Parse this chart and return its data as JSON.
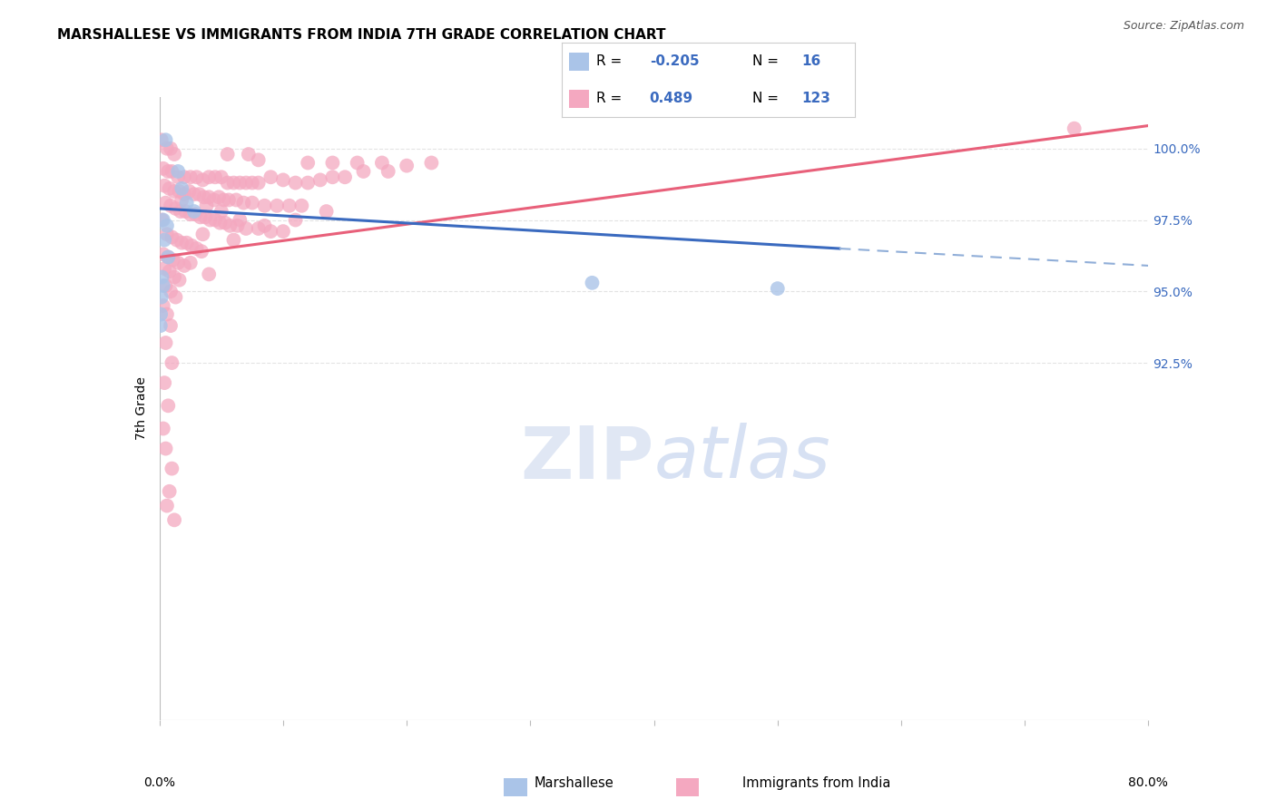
{
  "title": "MARSHALLESE VS IMMIGRANTS FROM INDIA 7TH GRADE CORRELATION CHART",
  "source": "Source: ZipAtlas.com",
  "ylabel": "7th Grade",
  "xlim": [
    0.0,
    80.0
  ],
  "ylim": [
    80.0,
    101.8
  ],
  "marshallese_R": -0.205,
  "marshallese_N": 16,
  "india_R": 0.489,
  "india_N": 123,
  "marshallese_color": "#aac4e8",
  "india_color": "#f4a8c0",
  "trendline_marshallese_solid_color": "#3a6abf",
  "trendline_marshallese_dash_color": "#90aed8",
  "trendline_india_color": "#e8607a",
  "background_color": "#ffffff",
  "grid_color": "#d8d8d8",
  "y_tick_pos": [
    92.5,
    95.0,
    97.5,
    100.0
  ],
  "y_tick_labels": [
    "92.5%",
    "95.0%",
    "97.5%",
    "100.0%"
  ],
  "marshallese_trendline_solid": [
    [
      0.0,
      97.9
    ],
    [
      55.0,
      96.5
    ]
  ],
  "marshallese_trendline_dash": [
    [
      55.0,
      96.5
    ],
    [
      80.0,
      95.9
    ]
  ],
  "india_trendline": [
    [
      0.0,
      96.2
    ],
    [
      80.0,
      100.8
    ]
  ],
  "marshallese_points": [
    [
      0.5,
      100.3
    ],
    [
      1.5,
      99.2
    ],
    [
      1.8,
      98.6
    ],
    [
      2.2,
      98.1
    ],
    [
      2.8,
      97.8
    ],
    [
      0.3,
      97.5
    ],
    [
      0.6,
      97.3
    ],
    [
      0.4,
      96.8
    ],
    [
      0.7,
      96.2
    ],
    [
      0.2,
      95.5
    ],
    [
      0.3,
      95.2
    ],
    [
      0.15,
      94.8
    ],
    [
      0.1,
      94.2
    ],
    [
      0.08,
      93.8
    ],
    [
      35.0,
      95.3
    ],
    [
      50.0,
      95.1
    ]
  ],
  "india_points": [
    [
      0.15,
      100.3
    ],
    [
      0.6,
      100.0
    ],
    [
      0.9,
      100.0
    ],
    [
      1.2,
      99.8
    ],
    [
      5.5,
      99.8
    ],
    [
      7.2,
      99.8
    ],
    [
      8.0,
      99.6
    ],
    [
      12.0,
      99.5
    ],
    [
      14.0,
      99.5
    ],
    [
      16.0,
      99.5
    ],
    [
      18.0,
      99.5
    ],
    [
      20.0,
      99.4
    ],
    [
      22.0,
      99.5
    ],
    [
      0.3,
      99.3
    ],
    [
      0.7,
      99.2
    ],
    [
      1.0,
      99.2
    ],
    [
      1.5,
      99.0
    ],
    [
      2.0,
      99.0
    ],
    [
      2.5,
      99.0
    ],
    [
      3.0,
      99.0
    ],
    [
      3.5,
      98.9
    ],
    [
      4.0,
      99.0
    ],
    [
      4.5,
      99.0
    ],
    [
      5.0,
      99.0
    ],
    [
      5.5,
      98.8
    ],
    [
      6.0,
      98.8
    ],
    [
      6.5,
      98.8
    ],
    [
      7.0,
      98.8
    ],
    [
      7.5,
      98.8
    ],
    [
      8.0,
      98.8
    ],
    [
      9.0,
      99.0
    ],
    [
      10.0,
      98.9
    ],
    [
      11.0,
      98.8
    ],
    [
      12.0,
      98.8
    ],
    [
      13.0,
      98.9
    ],
    [
      14.0,
      99.0
    ],
    [
      15.0,
      99.0
    ],
    [
      16.5,
      99.2
    ],
    [
      18.5,
      99.2
    ],
    [
      0.4,
      98.7
    ],
    [
      0.8,
      98.6
    ],
    [
      1.2,
      98.5
    ],
    [
      1.6,
      98.5
    ],
    [
      2.0,
      98.4
    ],
    [
      2.4,
      98.5
    ],
    [
      2.8,
      98.4
    ],
    [
      3.2,
      98.4
    ],
    [
      3.6,
      98.3
    ],
    [
      4.0,
      98.3
    ],
    [
      4.4,
      98.2
    ],
    [
      4.8,
      98.3
    ],
    [
      5.2,
      98.2
    ],
    [
      5.6,
      98.2
    ],
    [
      6.2,
      98.2
    ],
    [
      6.8,
      98.1
    ],
    [
      7.5,
      98.1
    ],
    [
      8.5,
      98.0
    ],
    [
      9.5,
      98.0
    ],
    [
      10.5,
      98.0
    ],
    [
      11.5,
      98.0
    ],
    [
      0.5,
      98.1
    ],
    [
      0.9,
      98.0
    ],
    [
      1.3,
      97.9
    ],
    [
      1.7,
      97.8
    ],
    [
      2.1,
      97.8
    ],
    [
      2.5,
      97.7
    ],
    [
      2.9,
      97.7
    ],
    [
      3.3,
      97.6
    ],
    [
      3.7,
      97.6
    ],
    [
      4.1,
      97.5
    ],
    [
      4.5,
      97.5
    ],
    [
      4.9,
      97.4
    ],
    [
      5.3,
      97.4
    ],
    [
      5.7,
      97.3
    ],
    [
      6.3,
      97.3
    ],
    [
      7.0,
      97.2
    ],
    [
      8.0,
      97.2
    ],
    [
      9.0,
      97.1
    ],
    [
      10.0,
      97.1
    ],
    [
      0.6,
      97.0
    ],
    [
      1.0,
      96.9
    ],
    [
      1.4,
      96.8
    ],
    [
      1.8,
      96.7
    ],
    [
      2.2,
      96.7
    ],
    [
      2.6,
      96.6
    ],
    [
      3.0,
      96.5
    ],
    [
      3.4,
      96.4
    ],
    [
      0.3,
      96.3
    ],
    [
      0.7,
      96.2
    ],
    [
      1.1,
      96.1
    ],
    [
      1.5,
      96.0
    ],
    [
      2.0,
      95.9
    ],
    [
      0.4,
      95.8
    ],
    [
      0.8,
      95.7
    ],
    [
      1.2,
      95.5
    ],
    [
      1.6,
      95.4
    ],
    [
      0.5,
      95.2
    ],
    [
      0.9,
      95.0
    ],
    [
      1.3,
      94.8
    ],
    [
      0.3,
      94.5
    ],
    [
      0.6,
      94.2
    ],
    [
      0.9,
      93.8
    ],
    [
      0.5,
      93.2
    ],
    [
      1.0,
      92.5
    ],
    [
      0.4,
      91.8
    ],
    [
      0.7,
      91.0
    ],
    [
      0.3,
      90.2
    ],
    [
      0.5,
      89.5
    ],
    [
      1.0,
      88.8
    ],
    [
      0.8,
      88.0
    ],
    [
      0.6,
      87.5
    ],
    [
      1.2,
      87.0
    ],
    [
      74.0,
      100.7
    ],
    [
      3.8,
      98.0
    ],
    [
      5.0,
      97.8
    ],
    [
      6.5,
      97.5
    ],
    [
      8.5,
      97.3
    ],
    [
      11.0,
      97.5
    ],
    [
      13.5,
      97.8
    ],
    [
      2.5,
      96.0
    ],
    [
      4.0,
      95.6
    ],
    [
      0.2,
      97.5
    ],
    [
      1.8,
      98.2
    ],
    [
      3.5,
      97.0
    ],
    [
      6.0,
      96.8
    ]
  ]
}
